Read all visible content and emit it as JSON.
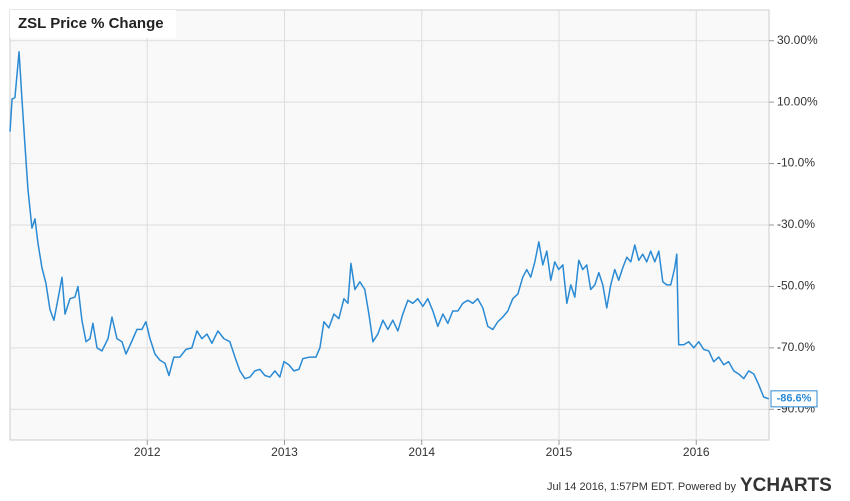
{
  "chart_data": {
    "type": "line",
    "title": "ZSL Price % Change",
    "xlim": [
      2011.0,
      2016.53
    ],
    "xticks": [
      2012,
      2013,
      2014,
      2015,
      2016
    ],
    "ylim": [
      -100,
      40
    ],
    "yticks": [
      {
        "value": 30,
        "label": "30.00%"
      },
      {
        "value": 10,
        "label": "10.00%"
      },
      {
        "value": -10,
        "label": "-10.0%"
      },
      {
        "value": -30,
        "label": "-30.0%"
      },
      {
        "value": -50,
        "label": "-50.0%"
      },
      {
        "value": -70,
        "label": "-70.0%"
      },
      {
        "value": -90,
        "label": "-90.0%"
      }
    ],
    "grid": true,
    "series": [
      {
        "name": "ZSL",
        "color": "#2a8ad4",
        "x": [
          2011.0,
          2011.015,
          2011.036,
          2011.066,
          2011.087,
          2011.109,
          2011.131,
          2011.16,
          2011.182,
          2011.204,
          2011.233,
          2011.262,
          2011.291,
          2011.32,
          2011.35,
          2011.379,
          2011.401,
          2011.437,
          2011.473,
          2011.495,
          2011.524,
          2011.554,
          2011.583,
          2011.604,
          2011.634,
          2011.67,
          2011.714,
          2011.743,
          2011.779,
          2011.816,
          2011.845,
          2011.881,
          2011.925,
          2011.961,
          2011.99,
          2012.02,
          2012.056,
          2012.092,
          2012.129,
          2012.158,
          2012.194,
          2012.238,
          2012.282,
          2012.325,
          2012.362,
          2012.398,
          2012.435,
          2012.471,
          2012.515,
          2012.558,
          2012.602,
          2012.639,
          2012.675,
          2012.711,
          2012.748,
          2012.784,
          2012.821,
          2012.857,
          2012.894,
          2012.93,
          2012.966,
          2012.996,
          2013.032,
          2013.068,
          2013.105,
          2013.134,
          2013.185,
          2013.229,
          2013.258,
          2013.287,
          2013.323,
          2013.36,
          2013.396,
          2013.433,
          2013.462,
          2013.484,
          2013.513,
          2013.549,
          2013.585,
          2013.615,
          2013.644,
          2013.68,
          2013.717,
          2013.753,
          2013.789,
          2013.826,
          2013.862,
          2013.899,
          2013.935,
          2013.971,
          2014.008,
          2014.044,
          2014.081,
          2014.117,
          2014.154,
          2014.19,
          2014.226,
          2014.263,
          2014.299,
          2014.336,
          2014.372,
          2014.408,
          2014.445,
          2014.481,
          2014.518,
          2014.554,
          2014.59,
          2014.627,
          2014.663,
          2014.7,
          2014.736,
          2014.765,
          2014.794,
          2014.824,
          2014.853,
          2014.882,
          2014.911,
          2014.94,
          2014.969,
          2014.998,
          2015.028,
          2015.057,
          2015.086,
          2015.115,
          2015.144,
          2015.173,
          2015.202,
          2015.231,
          2015.261,
          2015.29,
          2015.319,
          2015.348,
          2015.377,
          2015.406,
          2015.435,
          2015.464,
          2015.494,
          2015.523,
          2015.552,
          2015.581,
          2015.61,
          2015.639,
          2015.668,
          2015.698,
          2015.727,
          2015.756,
          2015.785,
          2015.814,
          2015.843,
          2015.858,
          2015.872,
          2015.909,
          2015.945,
          2015.982,
          2016.018,
          2016.054,
          2016.091,
          2016.127,
          2016.164,
          2016.2,
          2016.236,
          2016.273,
          2016.309,
          2016.346,
          2016.382,
          2016.419,
          2016.455,
          2016.491,
          2016.528
        ],
        "values": [
          0.4,
          11,
          11.5,
          26.4,
          11,
          -4,
          -18.5,
          -31,
          -28,
          -36,
          -44,
          -49,
          -57.5,
          -61,
          -54,
          -47,
          -59,
          -54,
          -53.5,
          -50,
          -61,
          -68,
          -67,
          -62,
          -70,
          -71,
          -67,
          -60,
          -67,
          -68,
          -72,
          -68.5,
          -64,
          -64,
          -61.5,
          -67,
          -72,
          -74,
          -75,
          -79,
          -73,
          -73,
          -70.5,
          -70,
          -64.5,
          -67,
          -65.5,
          -68.5,
          -64.5,
          -67,
          -68,
          -73,
          -77.5,
          -80,
          -79.5,
          -77.5,
          -77,
          -79,
          -79.5,
          -77.5,
          -79.5,
          -74.5,
          -75.5,
          -77.5,
          -77,
          -73.5,
          -73,
          -73,
          -70,
          -61.5,
          -63.5,
          -59,
          -60.5,
          -54,
          -55.5,
          -42.5,
          -51,
          -48.5,
          -51,
          -59,
          -68,
          -65.5,
          -61,
          -64,
          -61,
          -64.5,
          -59,
          -54.5,
          -55.5,
          -54,
          -56.5,
          -54,
          -58,
          -63,
          -59,
          -62,
          -58,
          -58,
          -55.5,
          -54.5,
          -55.5,
          -54,
          -57,
          -63,
          -64,
          -61.5,
          -60,
          -58,
          -54,
          -52.5,
          -47,
          -44.5,
          -47,
          -42,
          -35.5,
          -43,
          -38.5,
          -48,
          -42,
          -44.5,
          -43,
          -55.5,
          -49.5,
          -53.5,
          -41.5,
          -44.5,
          -43,
          -51,
          -49.5,
          -45.5,
          -49.5,
          -57,
          -49.5,
          -44.5,
          -48,
          -44,
          -40.5,
          -42,
          -36.5,
          -41.5,
          -39.5,
          -42,
          -38.5,
          -42,
          -38.5,
          -48.5,
          -49.5,
          -49.5,
          -44,
          -39.5,
          -69,
          -69,
          -68,
          -70,
          -68,
          -70.5,
          -71,
          -74.5,
          -73,
          -75.5,
          -74.5,
          -77.5,
          -78.5,
          -80,
          -77.5,
          -78.5,
          -82,
          -86,
          -86.6
        ]
      }
    ],
    "last_label": "-86.6%",
    "footer": "Jul 14 2016, 1:57PM EDT.  Powered by",
    "brand": "YCHARTS"
  }
}
